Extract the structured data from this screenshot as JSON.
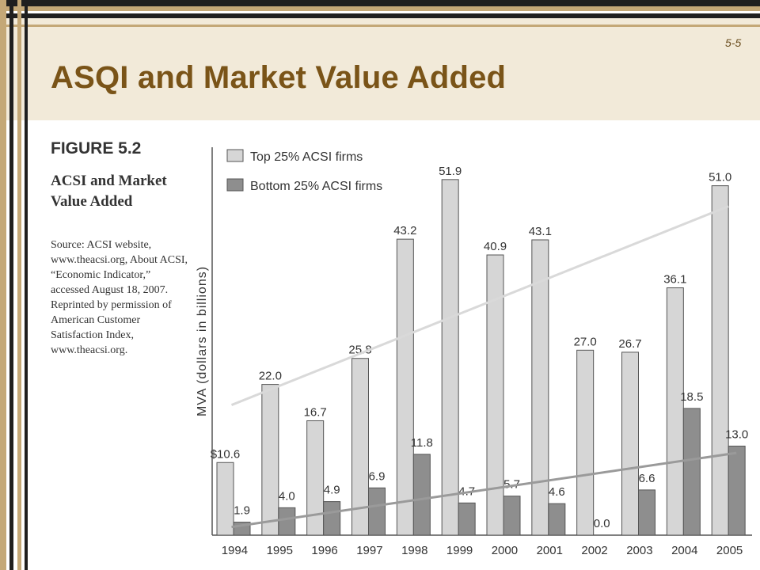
{
  "slide": {
    "number": "5-5",
    "title": "ASQI and Market Value Added"
  },
  "figure": {
    "label": "FIGURE 5.2",
    "title": "ACSI and Market Value Added",
    "source": "Source: ACSI website, www.theacsi.org, About ACSI, “Economic Indicator,” accessed August 18, 2007. Reprinted by permission of American Customer Satisfaction Index, www.theacsi.org."
  },
  "colors": {
    "top_series": "#d6d6d6",
    "bottom_series": "#8e8e8e",
    "bar_outline": "#555555",
    "top_trend": "#d9d9d9",
    "bottom_trend": "#9a9a9a",
    "title": "#7a5418"
  },
  "chart_data": {
    "type": "bar",
    "ylabel": "MVA (dollars in billions)",
    "ylim": [
      0,
      55
    ],
    "legend_position": "top-left",
    "categories": [
      "1994",
      "1995",
      "1996",
      "1997",
      "1998",
      "1999",
      "2000",
      "2001",
      "2002",
      "2003",
      "2004",
      "2005"
    ],
    "series": [
      {
        "name": "Top 25% ACSI firms",
        "values": [
          10.6,
          22.0,
          16.7,
          25.8,
          43.2,
          51.9,
          40.9,
          43.1,
          27.0,
          26.7,
          36.1,
          51.0
        ],
        "labels": [
          "$10.6",
          "22.0",
          "16.7",
          "25.8",
          "43.2",
          "51.9",
          "40.9",
          "43.1",
          "27.0",
          "26.7",
          "36.1",
          "51.0"
        ]
      },
      {
        "name": "Bottom 25% ACSI firms",
        "values": [
          1.9,
          4.0,
          4.9,
          6.9,
          11.8,
          4.7,
          5.7,
          4.6,
          0.0,
          6.6,
          18.5,
          13.0
        ],
        "labels": [
          "1.9",
          "4.0",
          "4.9",
          "6.9",
          "11.8",
          "4.7",
          "5.7",
          "4.6",
          "0.0",
          "6.6",
          "18.5",
          "13.0"
        ]
      }
    ],
    "trendlines": [
      {
        "series": "Top 25% ACSI firms",
        "from": 19.0,
        "to": 48.0
      },
      {
        "series": "Bottom 25% ACSI firms",
        "from": 1.2,
        "to": 12.0
      }
    ]
  }
}
